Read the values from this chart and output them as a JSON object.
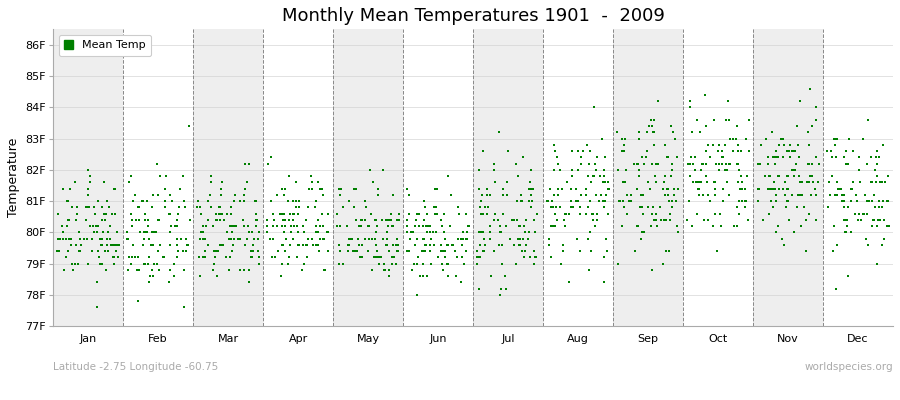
{
  "title": "Monthly Mean Temperatures 1901  -  2009",
  "ylabel": "Temperature",
  "subtitle_left": "Latitude -2.75 Longitude -60.75",
  "subtitle_right": "worldspecies.org",
  "legend_label": "Mean Temp",
  "dot_color": "#008000",
  "bg_color": "#ffffff",
  "band_color_odd": "#eeeeee",
  "band_color_even": "#ffffff",
  "months": [
    "Jan",
    "Feb",
    "Mar",
    "Apr",
    "May",
    "Jun",
    "Jul",
    "Aug",
    "Sep",
    "Oct",
    "Nov",
    "Dec"
  ],
  "ylim_low": 77.0,
  "ylim_high": 86.5,
  "yticks": [
    77,
    78,
    79,
    80,
    81,
    82,
    83,
    84,
    85,
    86
  ],
  "ytick_labels": [
    "77F",
    "78F",
    "79F",
    "80F",
    "81F",
    "82F",
    "83F",
    "84F",
    "85F",
    "86F"
  ],
  "seed": 12345,
  "n_years": 109,
  "month_means": [
    80.0,
    79.9,
    80.0,
    80.2,
    80.1,
    79.9,
    80.2,
    81.0,
    81.5,
    81.8,
    81.8,
    81.3
  ],
  "month_stds": [
    0.8,
    0.9,
    0.85,
    0.8,
    0.8,
    0.75,
    0.9,
    1.0,
    1.1,
    1.15,
    1.1,
    1.0
  ],
  "dot_size": 3,
  "title_fontsize": 13,
  "axis_label_fontsize": 9,
  "tick_fontsize": 8,
  "legend_fontsize": 8
}
